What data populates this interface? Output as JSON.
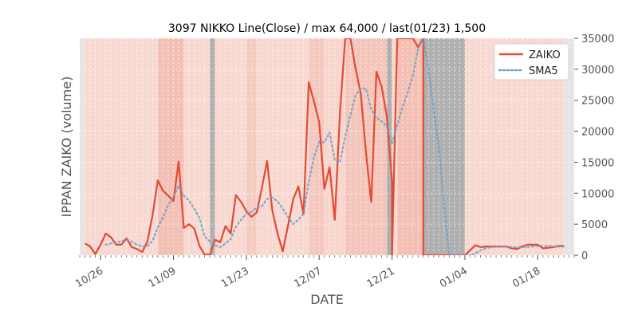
{
  "chart_data": {
    "type": "line",
    "title": "3097 NIKKO Line(Close) / max 64,000 / last(01/23) 1,500",
    "xlabel": "DATE",
    "ylabel": "IPPAN ZAIKO (volume)",
    "ylim": [
      0,
      35000
    ],
    "yticks": [
      0,
      5000,
      10000,
      15000,
      20000,
      25000,
      30000,
      35000
    ],
    "ytick_labels": [
      "0",
      "5000",
      "10000",
      "15000",
      "20000",
      "25000",
      "30000",
      "35000"
    ],
    "xlim": [
      "2020-10-22",
      "2021-01-25"
    ],
    "xticks": [
      "2020-10-26",
      "2020-11-09",
      "2020-11-23",
      "2020-12-07",
      "2020-12-21",
      "2021-01-04",
      "2021-01-18"
    ],
    "xtick_labels": [
      "10/26",
      "11/09",
      "11/23",
      "12/07",
      "12/21",
      "01/04",
      "01/18"
    ],
    "legend": {
      "placement": "top-right"
    },
    "grid": true,
    "series": [
      {
        "name": "ZAIKO",
        "style": "solid",
        "color": "#e24a33",
        "points": [
          [
            "2020-10-23",
            1900
          ],
          [
            "2020-10-24",
            1400
          ],
          [
            "2020-10-25",
            200
          ],
          [
            "2020-10-26",
            1700
          ],
          [
            "2020-10-27",
            3500
          ],
          [
            "2020-10-28",
            2900
          ],
          [
            "2020-10-29",
            1700
          ],
          [
            "2020-10-30",
            1700
          ],
          [
            "2020-10-31",
            2700
          ],
          [
            "2020-11-01",
            1300
          ],
          [
            "2020-11-02",
            1000
          ],
          [
            "2020-11-03",
            500
          ],
          [
            "2020-11-04",
            2200
          ],
          [
            "2020-11-05",
            6500
          ],
          [
            "2020-11-06",
            12100
          ],
          [
            "2020-11-07",
            10400
          ],
          [
            "2020-11-08",
            9600
          ],
          [
            "2020-11-09",
            8700
          ],
          [
            "2020-11-10",
            15100
          ],
          [
            "2020-11-11",
            4400
          ],
          [
            "2020-11-12",
            5000
          ],
          [
            "2020-11-13",
            4300
          ],
          [
            "2020-11-14",
            1500
          ],
          [
            "2020-11-15",
            100
          ],
          [
            "2020-11-16",
            100
          ],
          [
            "2020-11-17",
            2500
          ],
          [
            "2020-11-18",
            2100
          ],
          [
            "2020-11-19",
            4700
          ],
          [
            "2020-11-20",
            3500
          ],
          [
            "2020-11-21",
            9700
          ],
          [
            "2020-11-22",
            8600
          ],
          [
            "2020-11-23",
            7100
          ],
          [
            "2020-11-24",
            6200
          ],
          [
            "2020-11-25",
            6900
          ],
          [
            "2020-11-26",
            10900
          ],
          [
            "2020-11-27",
            15200
          ],
          [
            "2020-11-28",
            7200
          ],
          [
            "2020-11-29",
            3500
          ],
          [
            "2020-11-30",
            600
          ],
          [
            "2020-12-01",
            4700
          ],
          [
            "2020-12-02",
            9000
          ],
          [
            "2020-12-03",
            11100
          ],
          [
            "2020-12-04",
            6600
          ],
          [
            "2020-12-05",
            27900
          ],
          [
            "2020-12-06",
            24800
          ],
          [
            "2020-12-07",
            21500
          ],
          [
            "2020-12-08",
            10700
          ],
          [
            "2020-12-09",
            14200
          ],
          [
            "2020-12-10",
            5700
          ],
          [
            "2020-12-11",
            23000
          ],
          [
            "2020-12-12",
            35000
          ],
          [
            "2020-12-13",
            35000
          ],
          [
            "2020-12-14",
            30100
          ],
          [
            "2020-12-15",
            26000
          ],
          [
            "2020-12-16",
            16500
          ],
          [
            "2020-12-17",
            8600
          ],
          [
            "2020-12-18",
            29600
          ],
          [
            "2020-12-19",
            27200
          ],
          [
            "2020-12-20",
            22400
          ],
          [
            "2020-12-21",
            11900
          ],
          [
            "2020-12-21",
            0
          ],
          [
            "2020-12-22",
            35000
          ],
          [
            "2020-12-23",
            35000
          ],
          [
            "2020-12-24",
            35000
          ],
          [
            "2020-12-25",
            35000
          ],
          [
            "2020-12-26",
            33600
          ],
          [
            "2020-12-27",
            35000
          ],
          [
            "2020-12-27",
            0
          ],
          [
            "2020-12-28",
            0
          ],
          [
            "2021-01-03",
            0
          ],
          [
            "2021-01-04",
            0
          ],
          [
            "2021-01-05",
            800
          ],
          [
            "2021-01-06",
            1600
          ],
          [
            "2021-01-07",
            1300
          ],
          [
            "2021-01-08",
            1400
          ],
          [
            "2021-01-09",
            1400
          ],
          [
            "2021-01-10",
            1400
          ],
          [
            "2021-01-11",
            1400
          ],
          [
            "2021-01-12",
            1400
          ],
          [
            "2021-01-13",
            1100
          ],
          [
            "2021-01-14",
            1000
          ],
          [
            "2021-01-15",
            1400
          ],
          [
            "2021-01-16",
            1700
          ],
          [
            "2021-01-17",
            1700
          ],
          [
            "2021-01-18",
            1700
          ],
          [
            "2021-01-19",
            1100
          ],
          [
            "2021-01-20",
            1200
          ],
          [
            "2021-01-21",
            1300
          ],
          [
            "2021-01-22",
            1500
          ],
          [
            "2021-01-23",
            1500
          ]
        ]
      },
      {
        "name": "SMA5",
        "style": "dotted",
        "color": "#6d9ec7",
        "points": [
          [
            "2020-10-27",
            1700
          ],
          [
            "2020-10-28",
            1900
          ],
          [
            "2020-10-29",
            2000
          ],
          [
            "2020-10-30",
            2300
          ],
          [
            "2020-10-31",
            2500
          ],
          [
            "2020-11-01",
            2200
          ],
          [
            "2020-11-02",
            1700
          ],
          [
            "2020-11-03",
            1400
          ],
          [
            "2020-11-04",
            1500
          ],
          [
            "2020-11-05",
            2300
          ],
          [
            "2020-11-06",
            4500
          ],
          [
            "2020-11-07",
            6100
          ],
          [
            "2020-11-08",
            8100
          ],
          [
            "2020-11-09",
            9500
          ],
          [
            "2020-11-10",
            11200
          ],
          [
            "2020-11-11",
            9600
          ],
          [
            "2020-11-12",
            8800
          ],
          [
            "2020-11-13",
            7500
          ],
          [
            "2020-11-14",
            6000
          ],
          [
            "2020-11-15",
            3000
          ],
          [
            "2020-11-16",
            2200
          ],
          [
            "2020-11-17",
            1600
          ],
          [
            "2020-11-18",
            1300
          ],
          [
            "2020-11-19",
            1900
          ],
          [
            "2020-11-20",
            2600
          ],
          [
            "2020-11-21",
            4600
          ],
          [
            "2020-11-22",
            5700
          ],
          [
            "2020-11-23",
            6700
          ],
          [
            "2020-11-24",
            7000
          ],
          [
            "2020-11-25",
            7700
          ],
          [
            "2020-11-26",
            7900
          ],
          [
            "2020-11-27",
            9100
          ],
          [
            "2020-11-28",
            9300
          ],
          [
            "2020-11-29",
            8700
          ],
          [
            "2020-11-30",
            7500
          ],
          [
            "2020-12-01",
            6200
          ],
          [
            "2020-12-02",
            5000
          ],
          [
            "2020-12-03",
            5700
          ],
          [
            "2020-12-04",
            6700
          ],
          [
            "2020-12-05",
            11900
          ],
          [
            "2020-12-06",
            15800
          ],
          [
            "2020-12-07",
            18300
          ],
          [
            "2020-12-08",
            18200
          ],
          [
            "2020-12-09",
            19800
          ],
          [
            "2020-12-10",
            15300
          ],
          [
            "2020-12-11",
            15000
          ],
          [
            "2020-12-12",
            19100
          ],
          [
            "2020-12-13",
            22600
          ],
          [
            "2020-12-14",
            25800
          ],
          [
            "2020-12-15",
            26900
          ],
          [
            "2020-12-16",
            26900
          ],
          [
            "2020-12-17",
            23500
          ],
          [
            "2020-12-18",
            22200
          ],
          [
            "2020-12-19",
            21600
          ],
          [
            "2020-12-20",
            20800
          ],
          [
            "2020-12-21",
            18000
          ],
          [
            "2020-12-22",
            21000
          ],
          [
            "2020-12-23",
            23900
          ],
          [
            "2020-12-24",
            26200
          ],
          [
            "2020-12-25",
            29000
          ],
          [
            "2020-12-26",
            33200
          ],
          [
            "2020-12-27",
            35000
          ],
          [
            "2020-12-28",
            30000
          ],
          [
            "2020-12-29",
            23500
          ],
          [
            "2020-12-30",
            17500
          ],
          [
            "2020-12-31",
            8000
          ],
          [
            "2021-01-01",
            100
          ],
          [
            "2021-01-02",
            0
          ],
          [
            "2021-01-03",
            0
          ],
          [
            "2021-01-04",
            0
          ],
          [
            "2021-01-05",
            0
          ],
          [
            "2021-01-06",
            300
          ],
          [
            "2021-01-07",
            800
          ],
          [
            "2021-01-08",
            1100
          ],
          [
            "2021-01-09",
            1300
          ],
          [
            "2021-01-10",
            1400
          ],
          [
            "2021-01-11",
            1400
          ],
          [
            "2021-01-12",
            1400
          ],
          [
            "2021-01-13",
            1300
          ],
          [
            "2021-01-14",
            1300
          ],
          [
            "2021-01-15",
            1300
          ],
          [
            "2021-01-16",
            1300
          ],
          [
            "2021-01-17",
            1400
          ],
          [
            "2021-01-18",
            1500
          ],
          [
            "2021-01-19",
            1500
          ],
          [
            "2021-01-20",
            1500
          ],
          [
            "2021-01-21",
            1400
          ],
          [
            "2021-01-22",
            1400
          ],
          [
            "2021-01-23",
            1400
          ]
        ]
      }
    ],
    "background_bands": [
      [
        "2020-10-22",
        "2020-10-23",
        "#e5e5e5"
      ],
      [
        "2020-10-23",
        "2020-11-06",
        "#f8d9d2"
      ],
      [
        "2020-11-06",
        "2020-11-11",
        "#f2c0b5"
      ],
      [
        "2020-11-11",
        "2020-11-16",
        "#f8d9d2"
      ],
      [
        "2020-11-16",
        "2020-11-17",
        "#b0b0b0"
      ],
      [
        "2020-11-17",
        "2020-11-23",
        "#f8d9d2"
      ],
      [
        "2020-11-23",
        "2020-11-25",
        "#f4cbc1"
      ],
      [
        "2020-11-25",
        "2020-12-05",
        "#f8d9d2"
      ],
      [
        "2020-12-05",
        "2020-12-08",
        "#f4c8bd"
      ],
      [
        "2020-12-08",
        "2020-12-12",
        "#f8d6ce"
      ],
      [
        "2020-12-12",
        "2020-12-20",
        "#f4c6bb"
      ],
      [
        "2020-12-20",
        "2020-12-21",
        "#b0b0b0"
      ],
      [
        "2020-12-21",
        "2020-12-22",
        "#f8d9d2"
      ],
      [
        "2020-12-22",
        "2020-12-27",
        "#f4c0b4"
      ],
      [
        "2020-12-27",
        "2021-01-04",
        "#b0b0b0"
      ],
      [
        "2021-01-04",
        "2021-01-23",
        "#f8d9d2"
      ],
      [
        "2021-01-23",
        "2021-01-25",
        "#e5e5e5"
      ]
    ],
    "colors": {
      "zaiko": "#e24a33",
      "sma5": "#6d9ec7",
      "band_gray": "#b0b0b0"
    }
  }
}
